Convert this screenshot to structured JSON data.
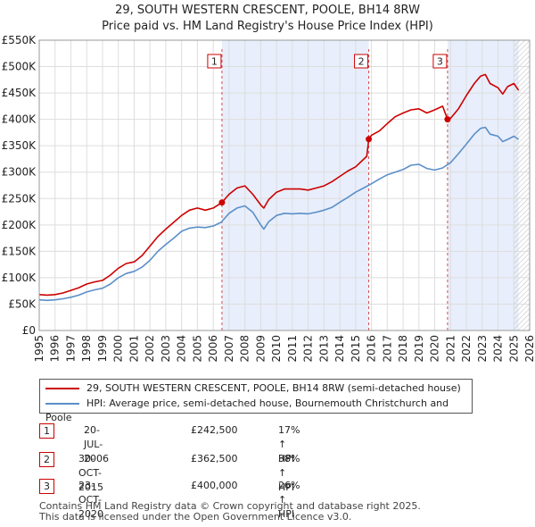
{
  "title_line1": "29, SOUTH WESTERN CRESCENT, POOLE, BH14 8RW",
  "title_line2": "Price paid vs. HM Land Registry's House Price Index (HPI)",
  "chart_data": {
    "type": "line",
    "xlabel": "",
    "ylabel": "",
    "xlim": [
      1995,
      2026
    ],
    "ylim": [
      0,
      550000
    ],
    "x_ticks": [
      "1995",
      "1996",
      "1997",
      "1998",
      "1999",
      "2000",
      "2001",
      "2002",
      "2003",
      "2004",
      "2005",
      "2006",
      "2007",
      "2008",
      "2009",
      "2010",
      "2011",
      "2012",
      "2013",
      "2014",
      "2015",
      "2016",
      "2017",
      "2018",
      "2019",
      "2020",
      "2021",
      "2022",
      "2023",
      "2024",
      "2025",
      "2026"
    ],
    "y_ticks": [
      {
        "value": 0,
        "label": "£0"
      },
      {
        "value": 50000,
        "label": "£50K"
      },
      {
        "value": 100000,
        "label": "£100K"
      },
      {
        "value": 150000,
        "label": "£150K"
      },
      {
        "value": 200000,
        "label": "£200K"
      },
      {
        "value": 250000,
        "label": "£250K"
      },
      {
        "value": 300000,
        "label": "£300K"
      },
      {
        "value": 350000,
        "label": "£350K"
      },
      {
        "value": 400000,
        "label": "£400K"
      },
      {
        "value": 450000,
        "label": "£450K"
      },
      {
        "value": 500000,
        "label": "£500K"
      },
      {
        "value": 550000,
        "label": "£550K"
      }
    ],
    "grid": true,
    "ownership_shading": [
      [
        2006.55,
        2015.83
      ],
      [
        2020.81,
        2025.3
      ]
    ],
    "future_hatch_start": 2025.0,
    "series": [
      {
        "name": "29, SOUTH WESTERN CRESCENT, POOLE, BH14 8RW (semi-detached house)",
        "color": "#cc0000",
        "x": [
          1995.0,
          1995.5,
          1996.0,
          1996.5,
          1997.0,
          1997.5,
          1998.0,
          1998.5,
          1999.0,
          1999.5,
          2000.0,
          2000.5,
          2001.0,
          2001.5,
          2002.0,
          2002.5,
          2003.0,
          2003.5,
          2004.0,
          2004.5,
          2005.0,
          2005.5,
          2006.0,
          2006.55,
          2007.0,
          2007.5,
          2008.0,
          2008.5,
          2009.0,
          2009.2,
          2009.5,
          2010.0,
          2010.5,
          2011.0,
          2011.5,
          2012.0,
          2012.5,
          2013.0,
          2013.5,
          2014.0,
          2014.5,
          2015.0,
          2015.7,
          2015.83,
          2016.0,
          2016.5,
          2017.0,
          2017.5,
          2018.0,
          2018.5,
          2019.0,
          2019.5,
          2020.0,
          2020.5,
          2020.81,
          2021.0,
          2021.5,
          2022.0,
          2022.5,
          2022.9,
          2023.2,
          2023.5,
          2024.0,
          2024.3,
          2024.6,
          2025.0,
          2025.3
        ],
        "y": [
          68000,
          67000,
          68000,
          71000,
          76000,
          81000,
          88000,
          92000,
          95000,
          105000,
          118000,
          127000,
          130000,
          142000,
          160000,
          178000,
          192000,
          205000,
          218000,
          228000,
          232000,
          228000,
          232000,
          242500,
          258000,
          270000,
          274000,
          258000,
          238000,
          232000,
          248000,
          262000,
          268000,
          268000,
          268000,
          266000,
          270000,
          274000,
          282000,
          292000,
          302000,
          310000,
          330000,
          362500,
          370000,
          378000,
          392000,
          405000,
          412000,
          418000,
          420000,
          412000,
          418000,
          425000,
          400000,
          402000,
          420000,
          445000,
          468000,
          482000,
          485000,
          468000,
          460000,
          448000,
          462000,
          468000,
          455000
        ],
        "markers": [
          {
            "label": "1",
            "x": 2006.55,
            "y": 242500
          },
          {
            "label": "2",
            "x": 2015.83,
            "y": 362500
          },
          {
            "label": "3",
            "x": 2020.81,
            "y": 400000
          }
        ]
      },
      {
        "name": "HPI: Average price, semi-detached house, Bournemouth Christchurch and Poole",
        "color": "#5b8fc9",
        "x": [
          1995.0,
          1995.5,
          1996.0,
          1996.5,
          1997.0,
          1997.5,
          1998.0,
          1998.5,
          1999.0,
          1999.5,
          2000.0,
          2000.5,
          2001.0,
          2001.5,
          2002.0,
          2002.5,
          2003.0,
          2003.5,
          2004.0,
          2004.5,
          2005.0,
          2005.5,
          2006.0,
          2006.5,
          2007.0,
          2007.5,
          2008.0,
          2008.5,
          2009.0,
          2009.2,
          2009.5,
          2010.0,
          2010.5,
          2011.0,
          2011.5,
          2012.0,
          2012.5,
          2013.0,
          2013.5,
          2014.0,
          2014.5,
          2015.0,
          2015.5,
          2016.0,
          2016.5,
          2017.0,
          2017.5,
          2018.0,
          2018.5,
          2019.0,
          2019.5,
          2020.0,
          2020.5,
          2021.0,
          2021.5,
          2022.0,
          2022.5,
          2022.9,
          2023.2,
          2023.5,
          2024.0,
          2024.3,
          2024.6,
          2025.0,
          2025.3
        ],
        "y": [
          58000,
          57000,
          58000,
          60000,
          63000,
          67000,
          73000,
          77000,
          80000,
          88000,
          100000,
          108000,
          112000,
          120000,
          133000,
          150000,
          163000,
          175000,
          188000,
          194000,
          196000,
          195000,
          198000,
          205000,
          222000,
          232000,
          236000,
          224000,
          200000,
          192000,
          206000,
          218000,
          222000,
          221000,
          222000,
          221000,
          224000,
          228000,
          233000,
          243000,
          252000,
          262000,
          270000,
          278000,
          287000,
          295000,
          300000,
          305000,
          313000,
          315000,
          307000,
          304000,
          308000,
          318000,
          335000,
          353000,
          372000,
          383000,
          385000,
          372000,
          368000,
          358000,
          362000,
          368000,
          362000
        ]
      }
    ],
    "legend_position": "below"
  },
  "sales": [
    {
      "num": "1",
      "date": "20-JUL-2006",
      "price": "£242,500",
      "change": "17% ↑ HPI"
    },
    {
      "num": "2",
      "date": "30-OCT-2015",
      "price": "£362,500",
      "change": "38% ↑ HPI"
    },
    {
      "num": "3",
      "date": "23-OCT-2020",
      "price": "£400,000",
      "change": "26% ↑ HPI"
    }
  ],
  "footer_line1": "Contains HM Land Registry data © Crown copyright and database right 2025.",
  "footer_line2": "This data is licensed under the Open Government Licence v3.0."
}
